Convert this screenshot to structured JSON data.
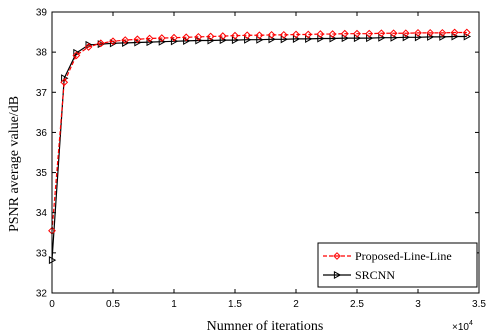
{
  "chart_data": {
    "type": "line",
    "xlabel": "Numner of iterations",
    "ylabel": "PSNR average value/dB",
    "x_exponent_base": "×10",
    "x_exponent_power": "4",
    "xlim": [
      0,
      3.5
    ],
    "ylim": [
      32,
      39
    ],
    "xticks": [
      0,
      0.5,
      1,
      1.5,
      2,
      2.5,
      3,
      3.5
    ],
    "xtick_labels": [
      "0",
      "0.5",
      "1",
      "1.5",
      "2",
      "2.5",
      "3",
      "3.5"
    ],
    "yticks": [
      32,
      33,
      34,
      35,
      36,
      37,
      38,
      39
    ],
    "ytick_labels": [
      "32",
      "33",
      "34",
      "35",
      "36",
      "37",
      "38",
      "39"
    ],
    "grid": false,
    "legend_position": "bottom-right",
    "series": [
      {
        "name": "Proposed-Line-Line",
        "color": "#ff0000",
        "marker": "diamond",
        "line_style": "dashed",
        "x": [
          0,
          0.1,
          0.2,
          0.3,
          0.4,
          0.5,
          0.6,
          0.7,
          0.8,
          0.9,
          1.0,
          1.1,
          1.2,
          1.3,
          1.4,
          1.5,
          1.6,
          1.7,
          1.8,
          1.9,
          2.0,
          2.1,
          2.2,
          2.3,
          2.4,
          2.5,
          2.6,
          2.7,
          2.8,
          2.9,
          3.0,
          3.1,
          3.2,
          3.3,
          3.4
        ],
        "y": [
          33.55,
          37.25,
          37.92,
          38.13,
          38.22,
          38.27,
          38.3,
          38.32,
          38.34,
          38.35,
          38.36,
          38.37,
          38.38,
          38.39,
          38.4,
          38.41,
          38.42,
          38.42,
          38.43,
          38.43,
          38.44,
          38.44,
          38.45,
          38.45,
          38.46,
          38.46,
          38.46,
          38.47,
          38.47,
          38.47,
          38.48,
          38.48,
          38.48,
          38.49,
          38.49
        ]
      },
      {
        "name": "SRCNN",
        "color": "#000000",
        "marker": "triangle-right",
        "line_style": "solid",
        "x": [
          0,
          0.1,
          0.2,
          0.3,
          0.4,
          0.5,
          0.6,
          0.7,
          0.8,
          0.9,
          1.0,
          1.1,
          1.2,
          1.3,
          1.4,
          1.5,
          1.6,
          1.7,
          1.8,
          1.9,
          2.0,
          2.1,
          2.2,
          2.3,
          2.4,
          2.5,
          2.6,
          2.7,
          2.8,
          2.9,
          3.0,
          3.1,
          3.2,
          3.3,
          3.4
        ],
        "y": [
          32.82,
          37.35,
          37.98,
          38.18,
          38.2,
          38.22,
          38.23,
          38.24,
          38.25,
          38.26,
          38.27,
          38.28,
          38.29,
          38.29,
          38.3,
          38.3,
          38.31,
          38.31,
          38.32,
          38.32,
          38.33,
          38.33,
          38.34,
          38.34,
          38.35,
          38.35,
          38.35,
          38.36,
          38.36,
          38.37,
          38.37,
          38.38,
          38.38,
          38.39,
          38.39
        ]
      }
    ]
  }
}
